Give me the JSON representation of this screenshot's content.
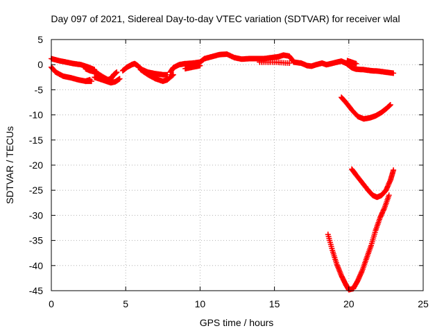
{
  "chart_data": {
    "type": "scatter",
    "title": "Day 097 of 2021, Sidereal Day-to-day VTEC variation (SDTVAR) for receiver wlal",
    "xlabel": "GPS time / hours",
    "ylabel": "SDTVAR / TECUs",
    "xlim": [
      0,
      25
    ],
    "ylim": [
      -45,
      5
    ],
    "xticks": [
      0,
      5,
      10,
      15,
      20,
      25
    ],
    "yticks": [
      5,
      0,
      -5,
      -10,
      -15,
      -20,
      -25,
      -30,
      -35,
      -40,
      -45
    ],
    "grid": true,
    "marker": "plus",
    "series_color": "#ff0000",
    "series": [
      {
        "segments": [
          [
            [
              0,
              1.2
            ],
            [
              0.5,
              0.8
            ],
            [
              1,
              0.5
            ],
            [
              1.5,
              0.2
            ],
            [
              2,
              0
            ],
            [
              2.5,
              -0.5
            ],
            [
              2.9,
              -1
            ]
          ],
          [
            [
              2.3,
              -0.8
            ],
            [
              2.6,
              -1.2
            ],
            [
              3,
              -1.5
            ],
            [
              3.5,
              -2.5
            ],
            [
              3.8,
              -3
            ],
            [
              4,
              -2.8
            ],
            [
              4.2,
              -2
            ],
            [
              4.4,
              -1.5
            ]
          ],
          [
            [
              0,
              -0.5
            ],
            [
              0.3,
              -1.5
            ],
            [
              0.8,
              -2.3
            ],
            [
              1.3,
              -2.6
            ],
            [
              1.8,
              -3
            ],
            [
              2.3,
              -3.3
            ],
            [
              2.7,
              -3.3
            ]
          ],
          [
            [
              2.3,
              -3.3
            ],
            [
              2.6,
              -3
            ]
          ],
          [
            [
              2.9,
              -2.5
            ],
            [
              3.3,
              -2.9
            ],
            [
              3.7,
              -3.3
            ],
            [
              4,
              -3.6
            ],
            [
              4.3,
              -3.4
            ],
            [
              4.6,
              -2.8
            ]
          ],
          [
            [
              4.8,
              -1.2
            ],
            [
              5.1,
              -0.5
            ],
            [
              5.4,
              0
            ],
            [
              5.6,
              0.2
            ],
            [
              5.8,
              -0.2
            ],
            [
              6.1,
              -1
            ],
            [
              6.5,
              -1.5
            ],
            [
              7,
              -1.8
            ],
            [
              7.5,
              -2
            ],
            [
              7.8,
              -2
            ]
          ],
          [
            [
              6,
              -1
            ],
            [
              6.5,
              -2
            ],
            [
              7,
              -2.8
            ],
            [
              7.5,
              -3.3
            ],
            [
              7.8,
              -3
            ]
          ],
          [
            [
              7.8,
              -3
            ],
            [
              8.2,
              -2
            ]
          ],
          [
            [
              8,
              -1.5
            ],
            [
              8.2,
              -0.6
            ],
            [
              8.6,
              0
            ],
            [
              9,
              0.2
            ],
            [
              9.5,
              0.3
            ],
            [
              10,
              0.5
            ],
            [
              10.3,
              1.2
            ],
            [
              10.8,
              1.6
            ],
            [
              11.3,
              2
            ],
            [
              11.8,
              2.1
            ],
            [
              12.3,
              1.4
            ],
            [
              12.8,
              1.1
            ],
            [
              13.3,
              1.2
            ],
            [
              13.8,
              1.2
            ],
            [
              14.3,
              1.2
            ],
            [
              14.8,
              1.4
            ],
            [
              15.3,
              1.6
            ],
            [
              15.6,
              1.9
            ],
            [
              16,
              1.7
            ],
            [
              16.3,
              0.5
            ],
            [
              16.8,
              0.3
            ],
            [
              17.2,
              -0.2
            ],
            [
              17.5,
              -0.3
            ],
            [
              17.8,
              0
            ],
            [
              18.2,
              0.3
            ],
            [
              18.5,
              0
            ],
            [
              18.8,
              0.2
            ],
            [
              19.2,
              0.5
            ],
            [
              19.5,
              0.7
            ],
            [
              19.8,
              0.3
            ],
            [
              20.2,
              -0.6
            ],
            [
              20.5,
              -0.9
            ],
            [
              21,
              -1
            ],
            [
              21.5,
              -1.2
            ],
            [
              22,
              -1.3
            ],
            [
              22.5,
              -1.5
            ],
            [
              23,
              -1.7
            ]
          ],
          [
            [
              9,
              -0.8
            ],
            [
              9.5,
              -0.5
            ],
            [
              10,
              -0.2
            ]
          ],
          [
            [
              14,
              0.5
            ],
            [
              15,
              0.5
            ],
            [
              16,
              0.3
            ]
          ],
          [
            [
              19.9,
              0.8
            ],
            [
              20.5,
              0.2
            ]
          ],
          [
            [
              19.5,
              -6.5
            ],
            [
              19.8,
              -7.5
            ],
            [
              20.2,
              -9
            ],
            [
              20.6,
              -10.3
            ],
            [
              21,
              -10.8
            ],
            [
              21.4,
              -10.6
            ],
            [
              21.8,
              -10.2
            ],
            [
              22.2,
              -9.5
            ],
            [
              22.5,
              -8.8
            ],
            [
              22.8,
              -8
            ]
          ],
          [
            [
              20.2,
              -20.8
            ],
            [
              20.5,
              -22
            ],
            [
              20.9,
              -23.5
            ],
            [
              21.3,
              -25
            ],
            [
              21.6,
              -26
            ],
            [
              21.9,
              -26.4
            ],
            [
              22.2,
              -26
            ],
            [
              22.5,
              -25
            ],
            [
              22.8,
              -23
            ],
            [
              23,
              -21
            ]
          ],
          [
            [
              18.6,
              -33.8
            ],
            [
              18.9,
              -37
            ],
            [
              19.2,
              -39.8
            ],
            [
              19.5,
              -42
            ],
            [
              19.8,
              -43.8
            ],
            [
              20,
              -44.8
            ],
            [
              20.3,
              -44.6
            ],
            [
              20.6,
              -43
            ],
            [
              20.9,
              -41
            ],
            [
              21.2,
              -38.5
            ],
            [
              21.5,
              -36
            ],
            [
              21.8,
              -33
            ],
            [
              22.1,
              -30.5
            ],
            [
              22.4,
              -28.5
            ],
            [
              22.7,
              -26
            ]
          ]
        ]
      }
    ]
  }
}
